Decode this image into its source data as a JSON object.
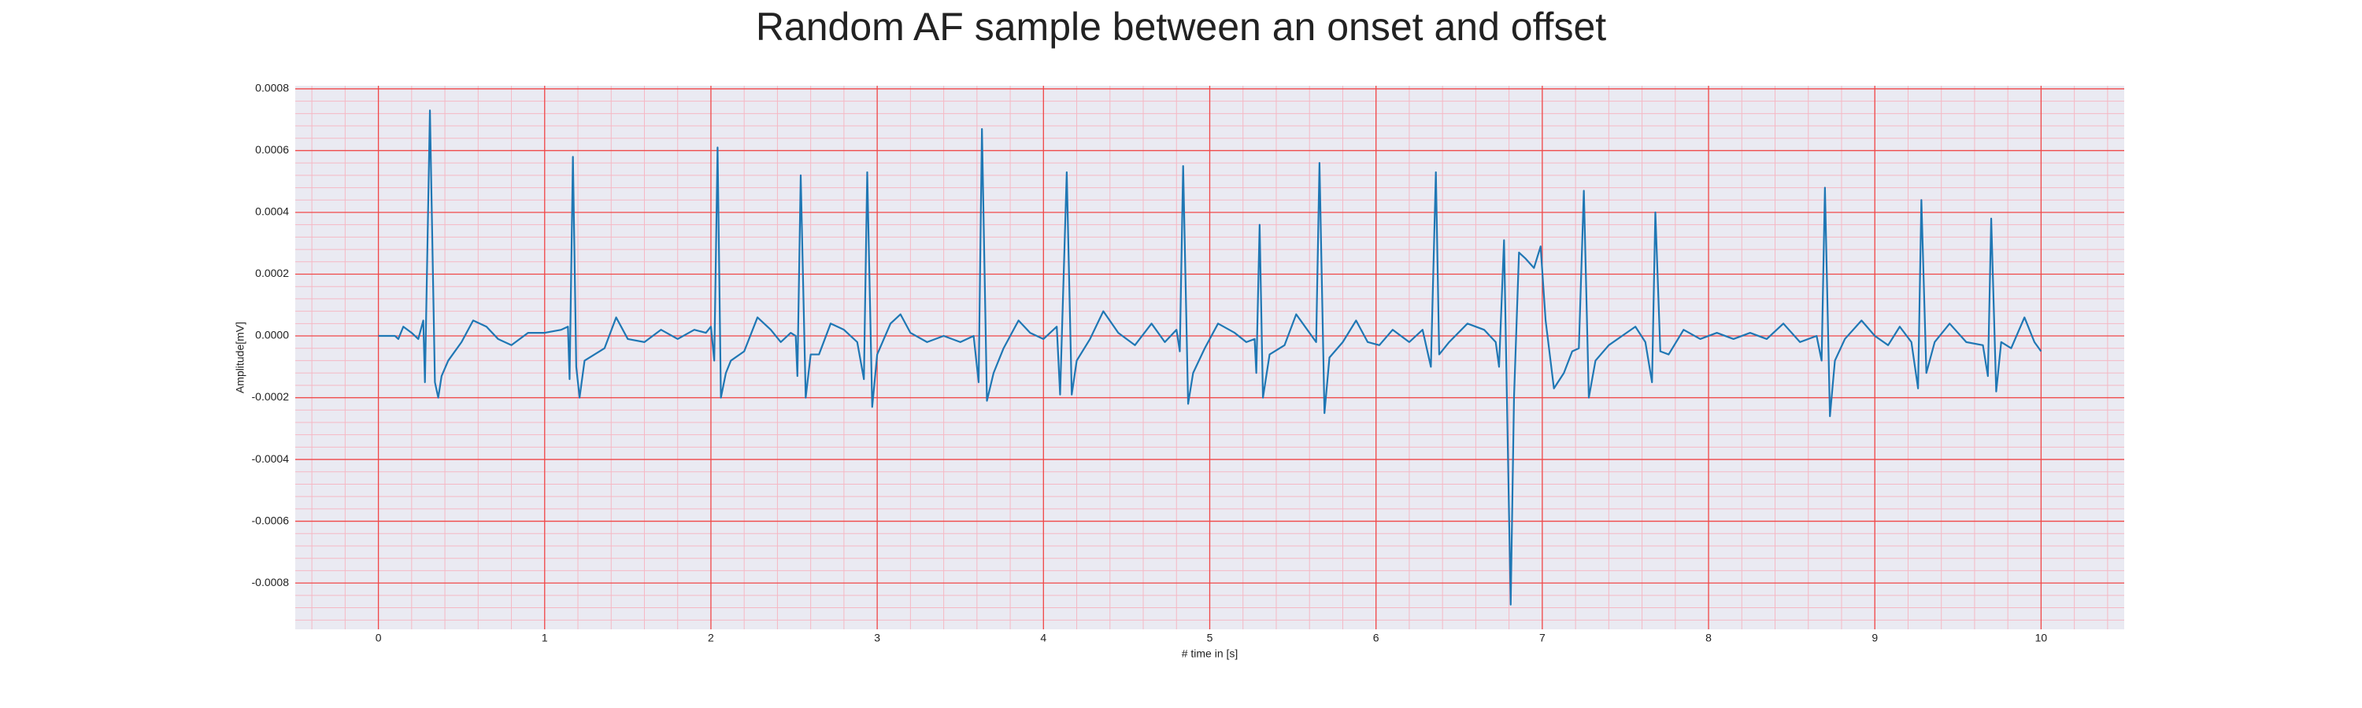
{
  "chart_data": {
    "type": "line",
    "title": "Random AF sample between an onset and offset",
    "xlabel": "# time in [s]",
    "ylabel": "Amplitude[mV]",
    "color": "#1f77b4",
    "grid": true,
    "minor_grid": true,
    "xlim": [
      -0.5,
      10.5
    ],
    "ylim": [
      -0.00095,
      0.00081
    ],
    "xticks": [
      0,
      1,
      2,
      3,
      4,
      5,
      6,
      7,
      8,
      9,
      10
    ],
    "yticks": [
      -0.0008,
      -0.0006,
      -0.0004,
      -0.0002,
      {
        "value": 0,
        "label": "0.0000"
      },
      0.0002,
      0.0004,
      0.0006,
      0.0008
    ],
    "x": [
      0,
      0.1,
      0.12,
      0.15,
      0.2,
      0.24,
      0.27,
      0.28,
      0.31,
      0.34,
      0.36,
      0.38,
      0.42,
      0.5,
      0.57,
      0.65,
      0.72,
      0.8,
      0.9,
      1.0,
      1.1,
      1.14,
      1.15,
      1.17,
      1.19,
      1.21,
      1.24,
      1.3,
      1.36,
      1.43,
      1.5,
      1.6,
      1.7,
      1.8,
      1.9,
      1.97,
      2.0,
      2.02,
      2.04,
      2.06,
      2.09,
      2.12,
      2.2,
      2.28,
      2.36,
      2.42,
      2.48,
      2.51,
      2.52,
      2.54,
      2.57,
      2.6,
      2.65,
      2.72,
      2.8,
      2.88,
      2.92,
      2.94,
      2.97,
      3.0,
      3.08,
      3.14,
      3.2,
      3.3,
      3.4,
      3.5,
      3.58,
      3.61,
      3.63,
      3.66,
      3.7,
      3.76,
      3.85,
      3.92,
      4.0,
      4.08,
      4.1,
      4.14,
      4.17,
      4.2,
      4.28,
      4.36,
      4.45,
      4.55,
      4.65,
      4.73,
      4.8,
      4.82,
      4.84,
      4.87,
      4.9,
      4.97,
      5.05,
      5.15,
      5.22,
      5.27,
      5.28,
      5.3,
      5.32,
      5.36,
      5.45,
      5.52,
      5.6,
      5.64,
      5.66,
      5.69,
      5.72,
      5.8,
      5.88,
      5.95,
      6.02,
      6.1,
      6.2,
      6.28,
      6.33,
      6.36,
      6.38,
      6.44,
      6.55,
      6.65,
      6.72,
      6.74,
      6.77,
      6.81,
      6.83,
      6.86,
      6.9,
      6.95,
      6.99,
      7.02,
      7.07,
      7.13,
      7.18,
      7.22,
      7.25,
      7.28,
      7.32,
      7.4,
      7.48,
      7.56,
      7.62,
      7.66,
      7.68,
      7.71,
      7.76,
      7.85,
      7.95,
      8.05,
      8.15,
      8.25,
      8.35,
      8.45,
      8.55,
      8.65,
      8.68,
      8.7,
      8.73,
      8.76,
      8.82,
      8.92,
      9.0,
      9.08,
      9.15,
      9.22,
      9.26,
      9.28,
      9.31,
      9.36,
      9.45,
      9.55,
      9.65,
      9.68,
      9.7,
      9.73,
      9.76,
      9.82,
      9.9,
      9.96,
      10.0
    ],
    "values": [
      0,
      0,
      -1e-05,
      3e-05,
      1e-05,
      -1e-05,
      5e-05,
      -0.00015,
      0.00073,
      -0.00015,
      -0.0002,
      -0.00013,
      -8e-05,
      -2e-05,
      5e-05,
      3e-05,
      -1e-05,
      -3e-05,
      1e-05,
      1e-05,
      2e-05,
      3e-05,
      -0.00014,
      0.00058,
      -0.0001,
      -0.0002,
      -8e-05,
      -6e-05,
      -4e-05,
      6e-05,
      -1e-05,
      -2e-05,
      2e-05,
      -1e-05,
      2e-05,
      1e-05,
      3e-05,
      -8e-05,
      0.00061,
      -0.0002,
      -0.00012,
      -8e-05,
      -5e-05,
      6e-05,
      2e-05,
      -2e-05,
      1e-05,
      0,
      -0.00013,
      0.00052,
      -0.0002,
      -6e-05,
      -6e-05,
      4e-05,
      2e-05,
      -2e-05,
      -0.00014,
      0.00053,
      -0.00023,
      -6e-05,
      4e-05,
      7e-05,
      1e-05,
      -2e-05,
      0,
      -2e-05,
      0,
      -0.00015,
      0.00067,
      -0.00021,
      -0.00012,
      -4e-05,
      5e-05,
      1e-05,
      -1e-05,
      3e-05,
      -0.00019,
      0.00053,
      -0.00019,
      -8e-05,
      -1e-05,
      8e-05,
      1e-05,
      -3e-05,
      4e-05,
      -2e-05,
      2e-05,
      -5e-05,
      0.00055,
      -0.00022,
      -0.00012,
      -4e-05,
      4e-05,
      1e-05,
      -2e-05,
      -1e-05,
      -0.00012,
      0.00036,
      -0.0002,
      -6e-05,
      -3e-05,
      7e-05,
      1e-05,
      -2e-05,
      0.00056,
      -0.00025,
      -7e-05,
      -2e-05,
      5e-05,
      -2e-05,
      -3e-05,
      2e-05,
      -2e-05,
      2e-05,
      -0.0001,
      0.00053,
      -6e-05,
      -2e-05,
      4e-05,
      2e-05,
      -2e-05,
      -0.0001,
      0.00031,
      -0.00087,
      -0.0002,
      0.00027,
      0.00025,
      0.00022,
      0.00029,
      5e-05,
      -0.00017,
      -0.00012,
      -5e-05,
      -4e-05,
      0.00047,
      -0.0002,
      -8e-05,
      -3e-05,
      0,
      3e-05,
      -2e-05,
      -0.00015,
      0.0004,
      -5e-05,
      -6e-05,
      2e-05,
      -1e-05,
      1e-05,
      -1e-05,
      1e-05,
      -1e-05,
      4e-05,
      -2e-05,
      0,
      -8e-05,
      0.00048,
      -0.00026,
      -8e-05,
      -1e-05,
      5e-05,
      0,
      -3e-05,
      3e-05,
      -2e-05,
      -0.00017,
      0.00044,
      -0.00012,
      -2e-05,
      4e-05,
      -2e-05,
      -3e-05,
      -0.00013,
      0.00038,
      -0.00018,
      -2e-05,
      -4e-05,
      6e-05,
      -2e-05,
      -5e-05
    ]
  }
}
